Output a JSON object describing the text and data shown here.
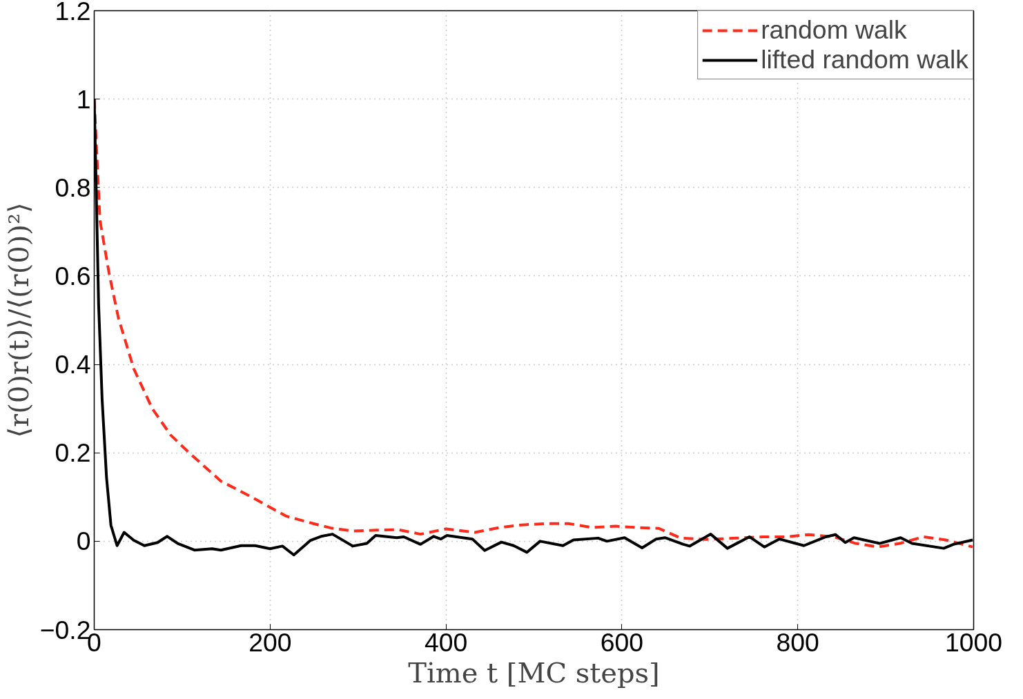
{
  "chart_data": {
    "type": "line",
    "xlabel": "Time t [MC steps]",
    "ylabel": "⟨r(0)r(t)⟩/⟨(r(0))²⟩",
    "xlim": [
      0,
      1000
    ],
    "xticks": [
      0,
      200,
      400,
      600,
      800,
      1000
    ],
    "ylim": [
      -0.2,
      1.2
    ],
    "yticks": [
      {
        "value": -0.2,
        "label": "−0.2"
      },
      0,
      0.2,
      0.4,
      0.6,
      0.8,
      1,
      1.2
    ],
    "grid": true,
    "legend": "top right",
    "series": [
      {
        "name": "random walk",
        "color": "#ff2a1a",
        "line_style": "dashed",
        "x": [
          0,
          6.5,
          17,
          27.5,
          45,
          66,
          87,
          108,
          144,
          179,
          218,
          249,
          269,
          294,
          321,
          346,
          371,
          400,
          433,
          461,
          486,
          514,
          539,
          567,
          593,
          617,
          642,
          667,
          695,
          731,
          760,
          787,
          812,
          841,
          866,
          891,
          916,
          943,
          968,
          999
        ],
        "values": [
          1.0,
          0.726,
          0.605,
          0.505,
          0.39,
          0.3,
          0.24,
          0.2,
          0.136,
          0.1,
          0.057,
          0.04,
          0.03,
          0.023,
          0.025,
          0.026,
          0.016,
          0.028,
          0.02,
          0.031,
          0.037,
          0.04,
          0.04,
          0.031,
          0.034,
          0.031,
          0.029,
          0.007,
          0.004,
          0.007,
          0.01,
          0.01,
          0.015,
          0.01,
          -0.005,
          -0.013,
          -0.005,
          0.01,
          0.003,
          -0.013
        ]
      },
      {
        "name": "lifted random walk",
        "color": "#000000",
        "line_style": "solid",
        "x": [
          0,
          2,
          5,
          9,
          14,
          19,
          26,
          34,
          45,
          57,
          72,
          83,
          95,
          114,
          134,
          144,
          167,
          183,
          200,
          214,
          227,
          246,
          258,
          271,
          294,
          310,
          320,
          344,
          352,
          371,
          386,
          394,
          401,
          430,
          444,
          463,
          477,
          492,
          507,
          533,
          545,
          573,
          583,
          603,
          623,
          639,
          649,
          670,
          677,
          701,
          720,
          745,
          762,
          779,
          807,
          832,
          843,
          854,
          864,
          893,
          917,
          930,
          966,
          977,
          999
        ],
        "values": [
          1.0,
          0.82,
          0.535,
          0.32,
          0.144,
          0.036,
          -0.01,
          0.02,
          0.002,
          -0.01,
          -0.003,
          0.011,
          -0.005,
          -0.02,
          -0.017,
          -0.02,
          -0.01,
          -0.01,
          -0.017,
          -0.011,
          -0.031,
          0.002,
          0.011,
          0.016,
          -0.011,
          -0.005,
          0.013,
          0.008,
          0.01,
          -0.007,
          0.011,
          0.005,
          0.013,
          0.005,
          -0.021,
          -0.002,
          -0.01,
          -0.025,
          0,
          -0.01,
          0.003,
          0.007,
          0,
          0.008,
          -0.015,
          0.005,
          0.008,
          -0.007,
          -0.011,
          0.016,
          -0.016,
          0.01,
          -0.013,
          0.005,
          -0.01,
          0.01,
          0.015,
          -0.003,
          0.008,
          -0.005,
          0.008,
          -0.005,
          -0.016,
          -0.007,
          0.003
        ]
      }
    ]
  }
}
